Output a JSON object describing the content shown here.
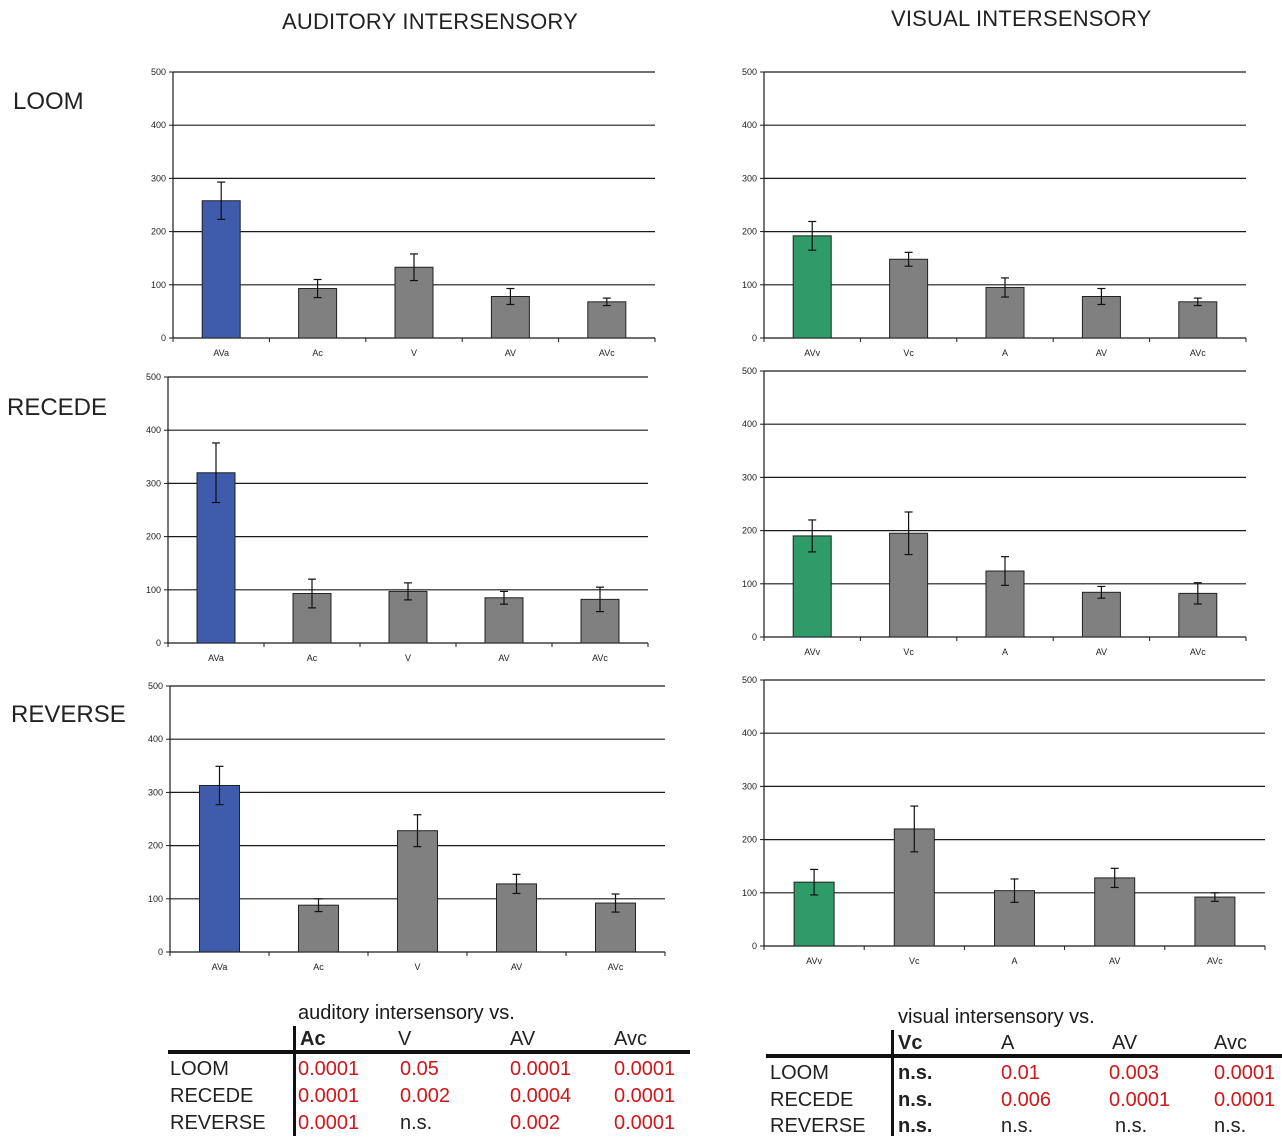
{
  "titles": {
    "auditory": "AUDITORY INTERSENSORY",
    "visual": "VISUAL INTERSENSORY"
  },
  "rows": {
    "loom": "LOOM",
    "recede": "RECEDE",
    "reverse": "REVERSE"
  },
  "colors": {
    "auditory_accent": "#3f5bab",
    "visual_accent": "#2e9b68",
    "other_bars": "#808080",
    "p_value_red": "#d0161a"
  },
  "chart_data": [
    {
      "type": "bar",
      "column": "auditory",
      "row": "loom",
      "categories": [
        "AVa",
        "Ac",
        "V",
        "AV",
        "AVc"
      ],
      "values": [
        258,
        93,
        133,
        78,
        68
      ],
      "errors": [
        35,
        17,
        25,
        15,
        7
      ],
      "ylim": [
        0,
        500
      ],
      "yticks": [
        0,
        100,
        200,
        300,
        400,
        500
      ],
      "highlight_index": 0,
      "grid": true
    },
    {
      "type": "bar",
      "column": "auditory",
      "row": "recede",
      "categories": [
        "AVa",
        "Ac",
        "V",
        "AV",
        "AVc"
      ],
      "values": [
        320,
        93,
        97,
        85,
        82
      ],
      "errors": [
        56,
        27,
        16,
        12,
        23
      ],
      "ylim": [
        0,
        500
      ],
      "yticks": [
        0,
        100,
        200,
        300,
        400,
        500
      ],
      "highlight_index": 0,
      "grid": true
    },
    {
      "type": "bar",
      "column": "auditory",
      "row": "reverse",
      "categories": [
        "AVa",
        "Ac",
        "V",
        "AV",
        "AVc"
      ],
      "values": [
        313,
        88,
        228,
        128,
        92
      ],
      "errors": [
        36,
        12,
        30,
        18,
        17
      ],
      "ylim": [
        0,
        500
      ],
      "yticks": [
        0,
        100,
        200,
        300,
        400,
        500
      ],
      "highlight_index": 0,
      "grid": true
    },
    {
      "type": "bar",
      "column": "visual",
      "row": "loom",
      "categories": [
        "AVv",
        "Vc",
        "A",
        "AV",
        "AVc"
      ],
      "values": [
        192,
        148,
        95,
        78,
        68
      ],
      "errors": [
        27,
        13,
        18,
        15,
        7
      ],
      "ylim": [
        0,
        500
      ],
      "yticks": [
        0,
        100,
        200,
        300,
        400,
        500
      ],
      "highlight_index": 0,
      "grid": true
    },
    {
      "type": "bar",
      "column": "visual",
      "row": "recede",
      "categories": [
        "AVv",
        "Vc",
        "A",
        "AV",
        "AVc"
      ],
      "values": [
        190,
        195,
        124,
        84,
        82
      ],
      "errors": [
        30,
        40,
        27,
        11,
        20
      ],
      "ylim": [
        0,
        500
      ],
      "yticks": [
        0,
        100,
        200,
        300,
        400,
        500
      ],
      "highlight_index": 0,
      "grid": true
    },
    {
      "type": "bar",
      "column": "visual",
      "row": "reverse",
      "categories": [
        "AVv",
        "Vc",
        "A",
        "AV",
        "AVc"
      ],
      "values": [
        120,
        220,
        104,
        128,
        92
      ],
      "errors": [
        24,
        43,
        22,
        18,
        8
      ],
      "ylim": [
        0,
        500
      ],
      "yticks": [
        0,
        100,
        200,
        300,
        400,
        500
      ],
      "highlight_index": 0,
      "grid": true
    }
  ],
  "tables": {
    "auditory": {
      "caption": "auditory intersensory vs.",
      "headers": [
        "Ac",
        "V",
        "AV",
        "Avc"
      ],
      "rows": [
        {
          "label": "LOOM",
          "values": [
            "0.0001",
            "0.05",
            "0.0001",
            "0.0001"
          ]
        },
        {
          "label": "RECEDE",
          "values": [
            "0.0001",
            "0.002",
            "0.0004",
            "0.0001"
          ]
        },
        {
          "label": "REVERSE",
          "values": [
            "0.0001",
            "n.s.",
            "0.002",
            "0.0001"
          ]
        }
      ]
    },
    "visual": {
      "caption": "visual intersensory vs.",
      "headers": [
        "Vc",
        "A",
        "AV",
        "Avc"
      ],
      "rows": [
        {
          "label": "LOOM",
          "values": [
            "n.s.",
            "0.01",
            "0.003",
            "0.0001"
          ]
        },
        {
          "label": "RECEDE",
          "values": [
            "n.s.",
            "0.006",
            "0.0001",
            "0.0001"
          ]
        },
        {
          "label": "REVERSE",
          "values": [
            "n.s.",
            "n.s.",
            "n.s.",
            "n.s."
          ]
        }
      ]
    }
  }
}
